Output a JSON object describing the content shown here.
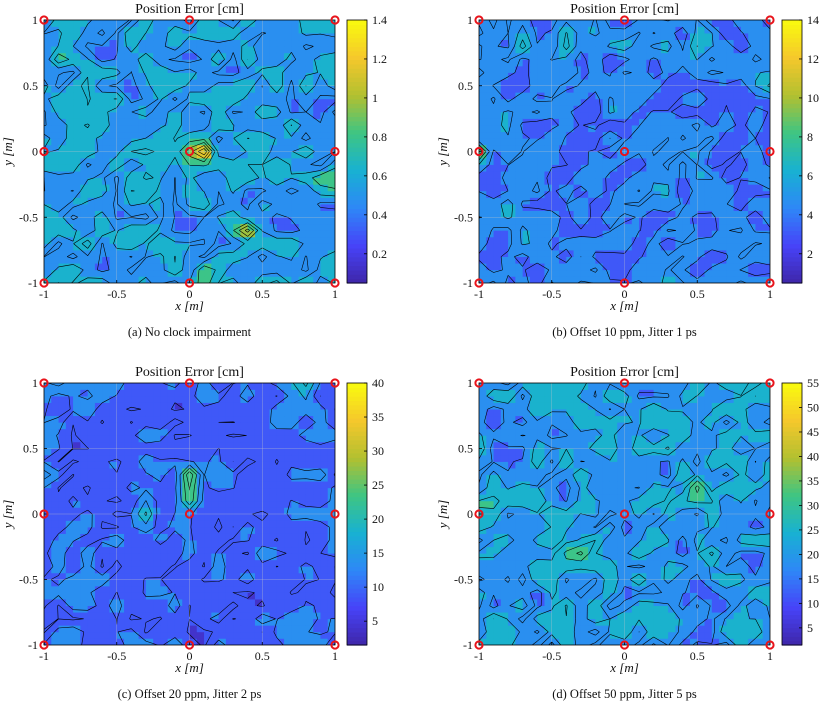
{
  "chart_data": [
    {
      "type": "heatmap",
      "title": "Position Error [cm]",
      "xlabel": "x [m]",
      "ylabel": "y [m]",
      "xlim": [
        -1,
        1
      ],
      "ylim": [
        -1,
        1
      ],
      "x_ticks": [
        "-1",
        "-0.5",
        "0",
        "0.5",
        "1"
      ],
      "y_ticks": [
        "-1",
        "-0.5",
        "0",
        "0.5",
        "1"
      ],
      "colorbar_range": [
        0.05,
        1.4
      ],
      "colorbar_ticks": [
        "0.2",
        "0.4",
        "0.6",
        "0.8",
        "1",
        "1.2",
        "1.4"
      ],
      "caption": "(a) No clock impairment",
      "anchors": [
        [
          -1,
          -1
        ],
        [
          0,
          -1
        ],
        [
          1,
          -1
        ],
        [
          -1,
          0
        ],
        [
          0,
          0
        ],
        [
          1,
          0
        ],
        [
          -1,
          1
        ],
        [
          0,
          1
        ],
        [
          1,
          1
        ]
      ],
      "hotspots": [
        {
          "x": 0.05,
          "y": 0.05,
          "value": 1.2
        },
        {
          "x": 0.1,
          "y": 0.0,
          "value": 1.1
        },
        {
          "x": 0.4,
          "y": -0.6,
          "value": 1.1
        },
        {
          "x": 0.1,
          "y": -0.95,
          "value": 1.0
        },
        {
          "x": -0.3,
          "y": 0.0,
          "value": 0.9
        },
        {
          "x": 0.95,
          "y": -0.2,
          "value": 0.85
        },
        {
          "x": -0.9,
          "y": 0.7,
          "value": 0.8
        },
        {
          "x": 0.6,
          "y": -0.35,
          "value": 0.75
        },
        {
          "x": 0.55,
          "y": -0.95,
          "value": 0.8
        },
        {
          "x": -0.7,
          "y": -0.75,
          "value": 0.7
        },
        {
          "x": -0.55,
          "y": 0.55,
          "value": 0.6
        }
      ]
    },
    {
      "type": "heatmap",
      "title": "Position Error [cm]",
      "xlabel": "x [m]",
      "ylabel": "y [m]",
      "xlim": [
        -1,
        1
      ],
      "ylim": [
        -1,
        1
      ],
      "x_ticks": [
        "-1",
        "-0.5",
        "0",
        "0.5",
        "1"
      ],
      "y_ticks": [
        "-1",
        "-0.5",
        "0",
        "0.5",
        "1"
      ],
      "colorbar_range": [
        0.5,
        14
      ],
      "colorbar_ticks": [
        "2",
        "4",
        "6",
        "8",
        "10",
        "12",
        "14"
      ],
      "caption": "(b) Offset 10 ppm, Jitter 1 ps",
      "anchors": [
        [
          -1,
          -1
        ],
        [
          0,
          -1
        ],
        [
          1,
          -1
        ],
        [
          -1,
          0
        ],
        [
          0,
          0
        ],
        [
          1,
          0
        ],
        [
          -1,
          1
        ],
        [
          0,
          1
        ],
        [
          1,
          1
        ]
      ],
      "hotspots": [
        {
          "x": -1.0,
          "y": 0.0,
          "value": 11
        },
        {
          "x": -0.4,
          "y": 0.85,
          "value": 9
        },
        {
          "x": -0.7,
          "y": 0.8,
          "value": 8
        },
        {
          "x": 0.55,
          "y": 0.8,
          "value": 8
        },
        {
          "x": 0.0,
          "y": 0.85,
          "value": 7
        },
        {
          "x": 0.35,
          "y": 0.75,
          "value": 7
        },
        {
          "x": 0.95,
          "y": 0.5,
          "value": 7
        },
        {
          "x": -0.75,
          "y": -0.35,
          "value": 6
        },
        {
          "x": 0.45,
          "y": 0.2,
          "value": 6
        },
        {
          "x": -0.9,
          "y": 0.9,
          "value": 6
        },
        {
          "x": -0.55,
          "y": -0.2,
          "value": 5
        }
      ]
    },
    {
      "type": "heatmap",
      "title": "Position Error [cm]",
      "xlabel": "x [m]",
      "ylabel": "y [m]",
      "xlim": [
        -1,
        1
      ],
      "ylim": [
        -1,
        1
      ],
      "x_ticks": [
        "-1",
        "-0.5",
        "0",
        "0.5",
        "1"
      ],
      "y_ticks": [
        "-1",
        "-0.5",
        "0",
        "0.5",
        "1"
      ],
      "colorbar_range": [
        1.5,
        40
      ],
      "colorbar_ticks": [
        "5",
        "10",
        "15",
        "20",
        "25",
        "30",
        "35",
        "40"
      ],
      "caption": "(c) Offset 20 ppm, Jitter 2 ps",
      "anchors": [
        [
          -1,
          -1
        ],
        [
          0,
          -1
        ],
        [
          1,
          -1
        ],
        [
          -1,
          0
        ],
        [
          0,
          0
        ],
        [
          1,
          0
        ],
        [
          -1,
          1
        ],
        [
          0,
          1
        ],
        [
          1,
          1
        ]
      ],
      "hotspots": [
        {
          "x": 0.0,
          "y": 0.25,
          "value": 36
        },
        {
          "x": 0.0,
          "y": 0.1,
          "value": 25
        },
        {
          "x": -0.3,
          "y": 0.0,
          "value": 22
        },
        {
          "x": -0.9,
          "y": 0.98,
          "value": 22
        },
        {
          "x": 0.8,
          "y": 0.98,
          "value": 20
        },
        {
          "x": -1.0,
          "y": 0.3,
          "value": 16
        },
        {
          "x": 0.0,
          "y": -0.35,
          "value": 14
        },
        {
          "x": 0.4,
          "y": 0.35,
          "value": 13
        },
        {
          "x": -0.4,
          "y": -0.5,
          "value": 11
        }
      ]
    },
    {
      "type": "heatmap",
      "title": "Position Error [cm]",
      "xlabel": "x [m]",
      "ylabel": "y [m]",
      "xlim": [
        -1,
        1
      ],
      "ylim": [
        -1,
        1
      ],
      "x_ticks": [
        "-1",
        "-0.5",
        "0",
        "0.5",
        "1"
      ],
      "y_ticks": [
        "-1",
        "-0.5",
        "0",
        "0.5",
        "1"
      ],
      "colorbar_range": [
        1.5,
        55
      ],
      "colorbar_ticks": [
        "5",
        "10",
        "15",
        "20",
        "25",
        "30",
        "35",
        "40",
        "45",
        "50",
        "55"
      ],
      "caption": "(d) Offset 50 ppm, Jitter 5 ps",
      "anchors": [
        [
          -1,
          -1
        ],
        [
          0,
          -1
        ],
        [
          1,
          -1
        ],
        [
          -1,
          0
        ],
        [
          0,
          0
        ],
        [
          1,
          0
        ],
        [
          -1,
          1
        ],
        [
          0,
          1
        ],
        [
          1,
          1
        ]
      ],
      "hotspots": [
        {
          "x": 0.5,
          "y": 0.15,
          "value": 45
        },
        {
          "x": 0.95,
          "y": 0.9,
          "value": 40
        },
        {
          "x": -0.3,
          "y": -0.3,
          "value": 38
        },
        {
          "x": 0.6,
          "y": -0.3,
          "value": 35
        },
        {
          "x": 0.85,
          "y": 0.6,
          "value": 35
        },
        {
          "x": -0.9,
          "y": 0.15,
          "value": 33
        },
        {
          "x": -0.6,
          "y": 0.85,
          "value": 32
        },
        {
          "x": 0.6,
          "y": 0.0,
          "value": 30
        },
        {
          "x": -0.85,
          "y": -0.9,
          "value": 30
        },
        {
          "x": 0.3,
          "y": -0.9,
          "value": 28
        },
        {
          "x": 0.9,
          "y": -0.6,
          "value": 30
        },
        {
          "x": -0.2,
          "y": 0.8,
          "value": 25
        },
        {
          "x": 0.25,
          "y": 0.5,
          "value": 25
        },
        {
          "x": -0.45,
          "y": -0.7,
          "value": 24
        },
        {
          "x": 0.8,
          "y": -0.1,
          "value": 26
        }
      ]
    }
  ],
  "style": {
    "colormap": [
      "#3e26a8",
      "#4743f8",
      "#2e87f7",
      "#18b1d2",
      "#3ec583",
      "#b2c030",
      "#f5c82c",
      "#f9fb0e"
    ],
    "contour_line_color": "#000000",
    "anchor_marker_color": "#e8141b",
    "grid_color": "#c8c8c8"
  }
}
